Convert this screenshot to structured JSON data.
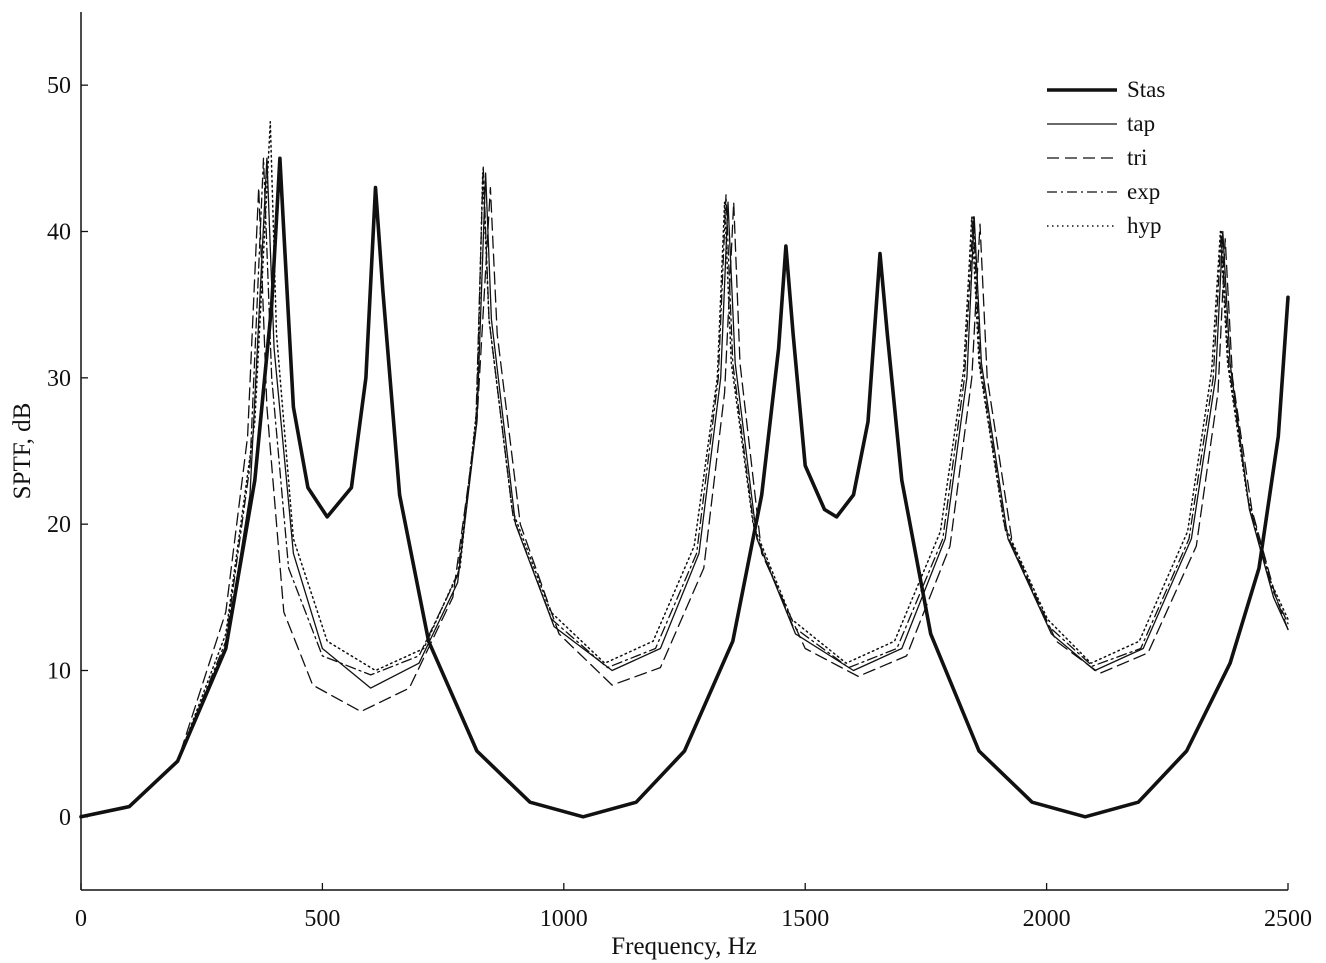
{
  "chart_data": {
    "type": "line",
    "title": "",
    "xlabel": "Frequency, Hz",
    "ylabel": "SPTF, dB",
    "xlim": [
      0,
      2500
    ],
    "ylim": [
      -5,
      55
    ],
    "xticks": [
      0,
      500,
      1000,
      1500,
      2000,
      2500
    ],
    "yticks": [
      0,
      10,
      20,
      30,
      40,
      50
    ],
    "grid": false,
    "legend_position": "top-right",
    "series": [
      {
        "name": "Stas",
        "style": "solid-thick",
        "points": [
          [
            0,
            0
          ],
          [
            100,
            0.7
          ],
          [
            200,
            3.8
          ],
          [
            300,
            11.5
          ],
          [
            360,
            23
          ],
          [
            395,
            35
          ],
          [
            412,
            45
          ],
          [
            420,
            40
          ],
          [
            440,
            28
          ],
          [
            470,
            22.5
          ],
          [
            510,
            20.5
          ],
          [
            560,
            22.5
          ],
          [
            590,
            30
          ],
          [
            610,
            43
          ],
          [
            625,
            36
          ],
          [
            660,
            22
          ],
          [
            720,
            12
          ],
          [
            820,
            4.5
          ],
          [
            930,
            1
          ],
          [
            1040,
            0
          ],
          [
            1150,
            1
          ],
          [
            1250,
            4.5
          ],
          [
            1350,
            12
          ],
          [
            1410,
            22
          ],
          [
            1445,
            32
          ],
          [
            1460,
            39
          ],
          [
            1475,
            33
          ],
          [
            1500,
            24
          ],
          [
            1540,
            21
          ],
          [
            1565,
            20.5
          ],
          [
            1600,
            22
          ],
          [
            1630,
            27
          ],
          [
            1655,
            38.5
          ],
          [
            1670,
            33
          ],
          [
            1700,
            23
          ],
          [
            1760,
            12.5
          ],
          [
            1860,
            4.5
          ],
          [
            1970,
            1
          ],
          [
            2080,
            0
          ],
          [
            2190,
            1
          ],
          [
            2290,
            4.5
          ],
          [
            2380,
            10.5
          ],
          [
            2440,
            17
          ],
          [
            2480,
            26
          ],
          [
            2500,
            35.5
          ]
        ]
      },
      {
        "name": "tap",
        "style": "solid-thin",
        "points": [
          [
            0,
            0
          ],
          [
            100,
            0.7
          ],
          [
            200,
            3.8
          ],
          [
            300,
            11.5
          ],
          [
            350,
            22
          ],
          [
            385,
            45
          ],
          [
            400,
            32
          ],
          [
            440,
            18
          ],
          [
            500,
            11.5
          ],
          [
            600,
            8.8
          ],
          [
            700,
            10.5
          ],
          [
            780,
            16
          ],
          [
            820,
            27
          ],
          [
            838,
            44
          ],
          [
            850,
            34
          ],
          [
            900,
            20
          ],
          [
            980,
            13
          ],
          [
            1100,
            10
          ],
          [
            1200,
            11.5
          ],
          [
            1280,
            18
          ],
          [
            1325,
            30
          ],
          [
            1340,
            42
          ],
          [
            1355,
            31
          ],
          [
            1400,
            19
          ],
          [
            1480,
            12.5
          ],
          [
            1600,
            10
          ],
          [
            1700,
            11.5
          ],
          [
            1790,
            19
          ],
          [
            1835,
            30
          ],
          [
            1850,
            41
          ],
          [
            1865,
            31
          ],
          [
            1920,
            19
          ],
          [
            2010,
            12.5
          ],
          [
            2100,
            10
          ],
          [
            2200,
            11.5
          ],
          [
            2300,
            19
          ],
          [
            2350,
            30
          ],
          [
            2365,
            40
          ],
          [
            2380,
            31
          ],
          [
            2420,
            21
          ],
          [
            2470,
            15
          ],
          [
            2500,
            12.8
          ]
        ]
      },
      {
        "name": "tri",
        "style": "dashed",
        "points": [
          [
            0,
            0
          ],
          [
            100,
            0.7
          ],
          [
            200,
            3.8
          ],
          [
            300,
            14
          ],
          [
            345,
            26
          ],
          [
            368,
            43
          ],
          [
            385,
            28
          ],
          [
            420,
            14
          ],
          [
            480,
            9
          ],
          [
            580,
            7.2
          ],
          [
            680,
            8.8
          ],
          [
            770,
            15
          ],
          [
            820,
            27
          ],
          [
            848,
            43
          ],
          [
            862,
            33
          ],
          [
            910,
            20
          ],
          [
            990,
            12.5
          ],
          [
            1100,
            9
          ],
          [
            1200,
            10.2
          ],
          [
            1290,
            17
          ],
          [
            1333,
            29
          ],
          [
            1352,
            42
          ],
          [
            1365,
            31
          ],
          [
            1410,
            18
          ],
          [
            1500,
            11.5
          ],
          [
            1610,
            9.6
          ],
          [
            1710,
            11
          ],
          [
            1800,
            18.5
          ],
          [
            1845,
            30
          ],
          [
            1862,
            40.5
          ],
          [
            1877,
            30
          ],
          [
            1930,
            18.5
          ],
          [
            2020,
            12
          ],
          [
            2110,
            9.8
          ],
          [
            2210,
            11.2
          ],
          [
            2310,
            18.5
          ],
          [
            2355,
            29
          ],
          [
            2370,
            39.5
          ],
          [
            2385,
            30
          ],
          [
            2425,
            21
          ],
          [
            2475,
            15
          ],
          [
            2500,
            12.8
          ]
        ]
      },
      {
        "name": "exp",
        "style": "dashdot",
        "points": [
          [
            0,
            0
          ],
          [
            100,
            0.7
          ],
          [
            200,
            3.8
          ],
          [
            300,
            12
          ],
          [
            350,
            24
          ],
          [
            378,
            45
          ],
          [
            395,
            30
          ],
          [
            430,
            17
          ],
          [
            500,
            11
          ],
          [
            600,
            9.7
          ],
          [
            700,
            11
          ],
          [
            780,
            16.5
          ],
          [
            818,
            27
          ],
          [
            833,
            44.5
          ],
          [
            845,
            34
          ],
          [
            895,
            20.5
          ],
          [
            975,
            13.5
          ],
          [
            1090,
            10.2
          ],
          [
            1190,
            11.5
          ],
          [
            1275,
            18
          ],
          [
            1320,
            30
          ],
          [
            1336,
            42.5
          ],
          [
            1350,
            31
          ],
          [
            1395,
            19.5
          ],
          [
            1475,
            13
          ],
          [
            1590,
            10.2
          ],
          [
            1690,
            11.5
          ],
          [
            1785,
            19
          ],
          [
            1830,
            30
          ],
          [
            1848,
            41
          ],
          [
            1862,
            31
          ],
          [
            1915,
            19.5
          ],
          [
            2005,
            13
          ],
          [
            2095,
            10.3
          ],
          [
            2195,
            11.5
          ],
          [
            2295,
            19
          ],
          [
            2345,
            30
          ],
          [
            2362,
            40
          ],
          [
            2377,
            31
          ],
          [
            2418,
            21.5
          ],
          [
            2468,
            15.5
          ],
          [
            2500,
            13.2
          ]
        ]
      },
      {
        "name": "hyp",
        "style": "dotted",
        "points": [
          [
            0,
            0
          ],
          [
            100,
            0.7
          ],
          [
            200,
            3.8
          ],
          [
            300,
            12.5
          ],
          [
            360,
            27
          ],
          [
            392,
            47.5
          ],
          [
            405,
            33
          ],
          [
            440,
            19
          ],
          [
            510,
            12
          ],
          [
            610,
            10
          ],
          [
            710,
            11.5
          ],
          [
            785,
            17
          ],
          [
            820,
            28
          ],
          [
            832,
            44
          ],
          [
            845,
            34
          ],
          [
            893,
            21
          ],
          [
            973,
            14
          ],
          [
            1085,
            10.5
          ],
          [
            1185,
            12
          ],
          [
            1270,
            18.5
          ],
          [
            1318,
            30
          ],
          [
            1333,
            42
          ],
          [
            1347,
            31
          ],
          [
            1392,
            20
          ],
          [
            1472,
            13.5
          ],
          [
            1585,
            10.5
          ],
          [
            1685,
            12
          ],
          [
            1780,
            19.5
          ],
          [
            1828,
            30.5
          ],
          [
            1845,
            41
          ],
          [
            1860,
            31
          ],
          [
            1912,
            20
          ],
          [
            2002,
            13.5
          ],
          [
            2092,
            10.5
          ],
          [
            2192,
            12
          ],
          [
            2292,
            19.5
          ],
          [
            2342,
            30.5
          ],
          [
            2360,
            40
          ],
          [
            2375,
            31
          ],
          [
            2415,
            22
          ],
          [
            2465,
            16
          ],
          [
            2500,
            13.5
          ]
        ]
      }
    ]
  }
}
